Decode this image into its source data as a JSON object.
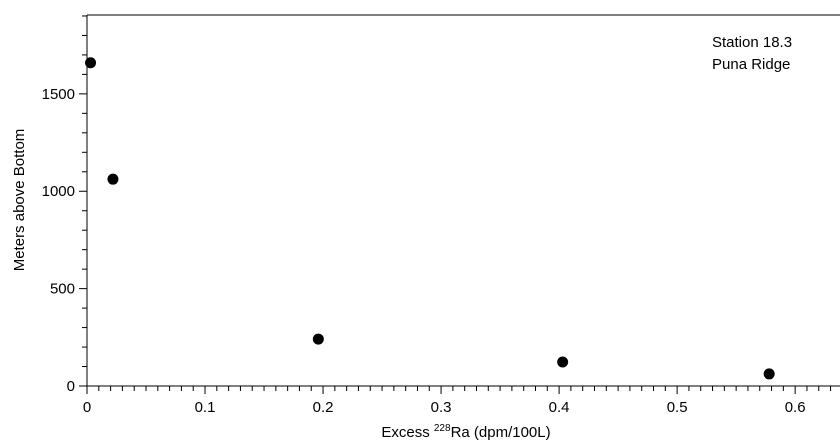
{
  "chart_data": {
    "type": "scatter",
    "annotations": [
      "Station 18.3",
      "Puna Ridge"
    ],
    "x_label": {
      "text": "Excess ",
      "sup": "228",
      "rest": "Ra (dpm/100L)"
    },
    "y_label": "Meters above Bottom",
    "series": [
      {
        "color": "#000000",
        "x": [
          0.003,
          0.022,
          0.196,
          0.403,
          0.578
        ],
        "values": [
          1660,
          1062,
          241,
          123,
          62
        ]
      }
    ],
    "xlim": [
      0,
      0.638
    ],
    "ylim": [
      0,
      1905
    ],
    "xticks": [
      0,
      0.1,
      0.2,
      0.3,
      0.4,
      0.5,
      0.6
    ],
    "yticks": [
      0,
      500,
      1000,
      1500
    ],
    "xminorticks": [
      0.01,
      0.02,
      0.03,
      0.04,
      0.05,
      0.06,
      0.07,
      0.08,
      0.09,
      0.11,
      0.12,
      0.13,
      0.14,
      0.15,
      0.16,
      0.17,
      0.18,
      0.19,
      0.21,
      0.22,
      0.23,
      0.24,
      0.25,
      0.26,
      0.27,
      0.28,
      0.29,
      0.31,
      0.32,
      0.33,
      0.34,
      0.35,
      0.36,
      0.37,
      0.38,
      0.39,
      0.41,
      0.42,
      0.43,
      0.44,
      0.45,
      0.46,
      0.47,
      0.48,
      0.49,
      0.51,
      0.52,
      0.53,
      0.54,
      0.55,
      0.56,
      0.57,
      0.58,
      0.59,
      0.61,
      0.62,
      0.63
    ],
    "yminorticks": [
      100,
      200,
      300,
      400,
      600,
      700,
      800,
      900,
      1100,
      1200,
      1300,
      1400,
      1600,
      1700,
      1800,
      1900
    ]
  }
}
